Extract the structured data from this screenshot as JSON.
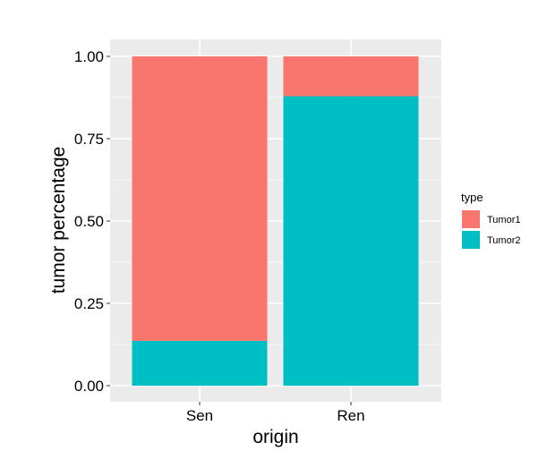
{
  "chart_data": {
    "type": "bar",
    "stacked": true,
    "categories": [
      "Sen",
      "Ren"
    ],
    "series": [
      {
        "name": "Tumor1",
        "values": [
          0.864,
          0.121
        ],
        "color": "#F8766D"
      },
      {
        "name": "Tumor2",
        "values": [
          0.136,
          0.879
        ],
        "color": "#00BFC4"
      }
    ],
    "xlabel": "origin",
    "ylabel": "tumor percentage",
    "ylim": [
      0,
      1
    ],
    "yticks": [
      {
        "value": 0,
        "label": "0.00"
      },
      {
        "value": 0.25,
        "label": "0.25"
      },
      {
        "value": 0.5,
        "label": "0.50"
      },
      {
        "value": 0.75,
        "label": "0.75"
      },
      {
        "value": 1,
        "label": "1.00"
      }
    ],
    "legend": {
      "title": "type",
      "position": "right"
    },
    "grid": true,
    "panel_background": "#EBEBEB",
    "grid_color": "#FFFFFF"
  }
}
